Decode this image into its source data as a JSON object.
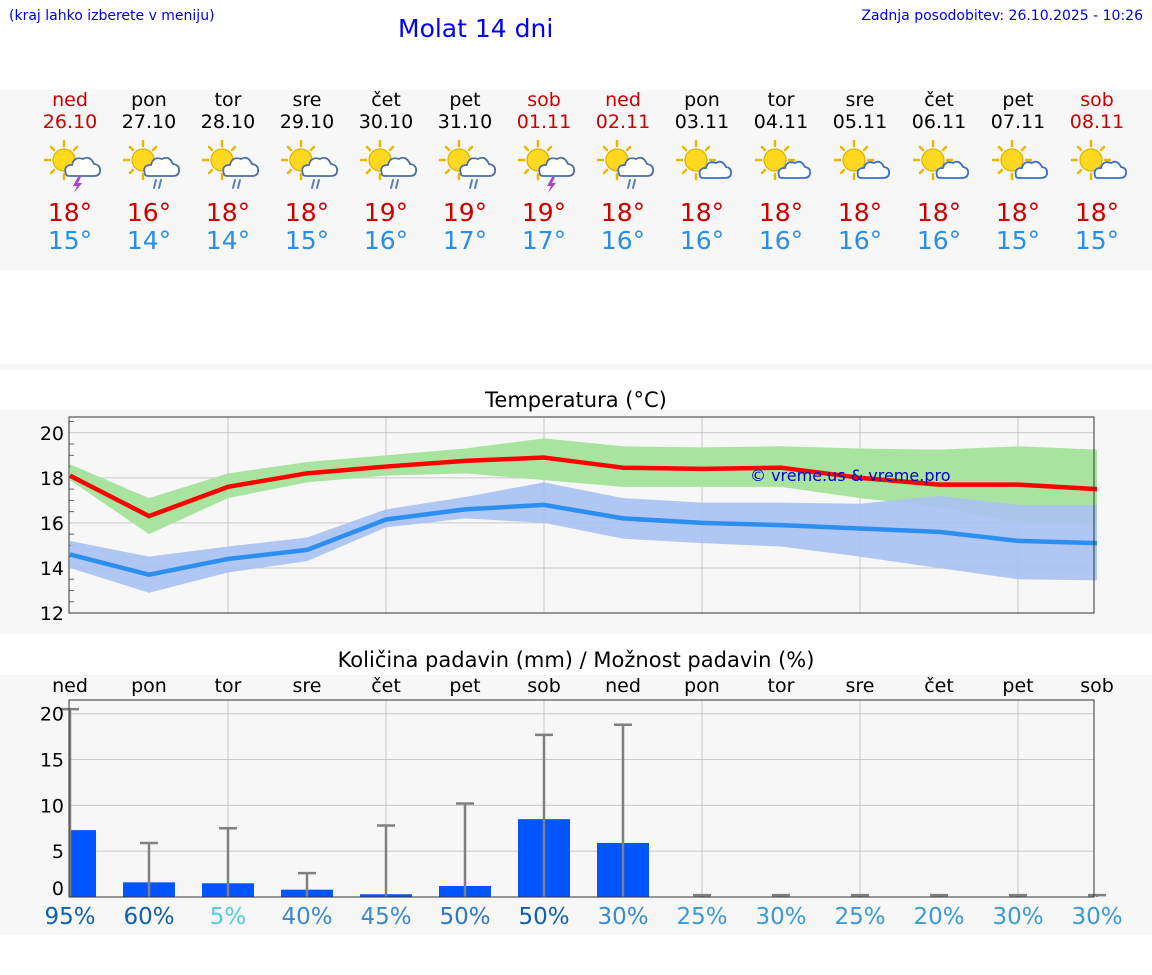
{
  "header": {
    "menu_hint": "(kraj lahko izberete v meniju)",
    "title": "Molat 14 dni",
    "updated": "Zadnja posodobitev: 26.10.2025 - 10:26"
  },
  "days": [
    {
      "name": "ned",
      "date": "26.10",
      "weekend": true,
      "icon": "sun-cloud-thunder-icon",
      "tmax": "18°",
      "tmin": "15°"
    },
    {
      "name": "pon",
      "date": "27.10",
      "weekend": false,
      "icon": "sun-cloud-rain-icon",
      "tmax": "16°",
      "tmin": "14°"
    },
    {
      "name": "tor",
      "date": "28.10",
      "weekend": false,
      "icon": "sun-cloud-rain-icon",
      "tmax": "18°",
      "tmin": "14°"
    },
    {
      "name": "sre",
      "date": "29.10",
      "weekend": false,
      "icon": "sun-cloud-rain-icon",
      "tmax": "18°",
      "tmin": "15°"
    },
    {
      "name": "čet",
      "date": "30.10",
      "weekend": false,
      "icon": "sun-cloud-rain-icon",
      "tmax": "19°",
      "tmin": "16°"
    },
    {
      "name": "pet",
      "date": "31.10",
      "weekend": false,
      "icon": "sun-cloud-rain-icon",
      "tmax": "19°",
      "tmin": "17°"
    },
    {
      "name": "sob",
      "date": "01.11",
      "weekend": true,
      "icon": "sun-cloud-thunder-icon",
      "tmax": "19°",
      "tmin": "17°"
    },
    {
      "name": "ned",
      "date": "02.11",
      "weekend": true,
      "icon": "sun-cloud-rain-icon",
      "tmax": "18°",
      "tmin": "16°"
    },
    {
      "name": "pon",
      "date": "03.11",
      "weekend": false,
      "icon": "sun-cloud-icon",
      "tmax": "18°",
      "tmin": "16°"
    },
    {
      "name": "tor",
      "date": "04.11",
      "weekend": false,
      "icon": "sun-cloud-icon",
      "tmax": "18°",
      "tmin": "16°"
    },
    {
      "name": "sre",
      "date": "05.11",
      "weekend": false,
      "icon": "sun-cloud-icon",
      "tmax": "18°",
      "tmin": "16°"
    },
    {
      "name": "čet",
      "date": "06.11",
      "weekend": false,
      "icon": "sun-cloud-icon",
      "tmax": "18°",
      "tmin": "16°"
    },
    {
      "name": "pet",
      "date": "07.11",
      "weekend": false,
      "icon": "sun-cloud-icon",
      "tmax": "18°",
      "tmin": "15°"
    },
    {
      "name": "sob",
      "date": "08.11",
      "weekend": true,
      "icon": "sun-cloud-icon",
      "tmax": "18°",
      "tmin": "15°"
    }
  ],
  "colors": {
    "red": "#cc0000",
    "blue_text": "#2a8ee6",
    "max_line": "#ff0000",
    "max_band": "#a8e4a0",
    "min_line": "#2b8ef0",
    "min_band": "#a9c1f2",
    "overlap_band": "#7fc4a6",
    "precip_bar": "#0055ff",
    "whisker": "#808080",
    "watermark": "#0000cc"
  },
  "chart_data": [
    {
      "type": "line",
      "title": "Temperatura (°C)",
      "ylim": [
        12,
        20.7
      ],
      "yticks": [
        "12",
        "14",
        "16",
        "18",
        "20"
      ],
      "x": [
        0,
        1,
        2,
        3,
        4,
        5,
        6,
        7,
        8,
        9,
        10,
        11,
        12,
        13
      ],
      "series": [
        {
          "name": "max",
          "values": [
            18.1,
            16.3,
            17.6,
            18.2,
            18.5,
            18.75,
            18.9,
            18.45,
            18.4,
            18.45,
            18.0,
            17.7,
            17.7,
            17.5
          ],
          "band_low": [
            17.9,
            15.5,
            17.1,
            17.8,
            18.1,
            18.2,
            17.9,
            17.6,
            17.6,
            17.6,
            17.1,
            16.7,
            16.0,
            15.9
          ],
          "band_high": [
            18.6,
            17.1,
            18.2,
            18.7,
            19.0,
            19.3,
            19.75,
            19.4,
            19.35,
            19.4,
            19.3,
            19.25,
            19.4,
            19.25
          ]
        },
        {
          "name": "min",
          "values": [
            14.6,
            13.7,
            14.4,
            14.8,
            16.15,
            16.6,
            16.8,
            16.2,
            16.0,
            15.9,
            15.75,
            15.6,
            15.2,
            15.1
          ],
          "band_low": [
            14.0,
            12.9,
            13.8,
            14.3,
            15.8,
            16.2,
            16.0,
            15.3,
            15.1,
            14.95,
            14.5,
            14.0,
            13.5,
            13.45
          ],
          "band_high": [
            15.2,
            14.5,
            14.95,
            15.35,
            16.6,
            17.15,
            17.8,
            17.1,
            16.9,
            16.9,
            16.85,
            17.2,
            16.8,
            16.8
          ]
        }
      ],
      "watermark": "© vreme.us & vreme.pro",
      "grid": true
    },
    {
      "type": "bar",
      "title": "Količina padavin (mm) / Možnost padavin (%)",
      "categories": [
        "ned",
        "pon",
        "tor",
        "sre",
        "čet",
        "pet",
        "sob",
        "ned",
        "pon",
        "tor",
        "sre",
        "čet",
        "pet",
        "sob"
      ],
      "values": [
        7.3,
        1.6,
        1.5,
        0.8,
        0.3,
        1.2,
        8.5,
        5.9,
        0,
        0,
        0,
        0,
        0,
        0
      ],
      "whisker_high": [
        20.5,
        5.9,
        7.5,
        2.6,
        7.8,
        10.2,
        17.7,
        18.8,
        0.2,
        0.2,
        0.2,
        0.2,
        0.2,
        0.2
      ],
      "ylim": [
        0,
        21.5
      ],
      "yticks": [
        "0",
        "5",
        "10",
        "15",
        "20"
      ],
      "probabilities": [
        {
          "label": "95%",
          "color": "#1060b0"
        },
        {
          "label": "60%",
          "color": "#1060b0"
        },
        {
          "label": "5%",
          "color": "#55ccdd"
        },
        {
          "label": "40%",
          "color": "#3a8ad0"
        },
        {
          "label": "45%",
          "color": "#3a8ad0"
        },
        {
          "label": "50%",
          "color": "#2e78c4"
        },
        {
          "label": "50%",
          "color": "#1060b0"
        },
        {
          "label": "30%",
          "color": "#3a8ad0"
        },
        {
          "label": "25%",
          "color": "#3a9ad8"
        },
        {
          "label": "30%",
          "color": "#3a9ad8"
        },
        {
          "label": "25%",
          "color": "#3a9ad8"
        },
        {
          "label": "20%",
          "color": "#3a9ad8"
        },
        {
          "label": "30%",
          "color": "#3a9ad8"
        },
        {
          "label": "30%",
          "color": "#3a9ad8"
        }
      ],
      "grid": true
    }
  ]
}
